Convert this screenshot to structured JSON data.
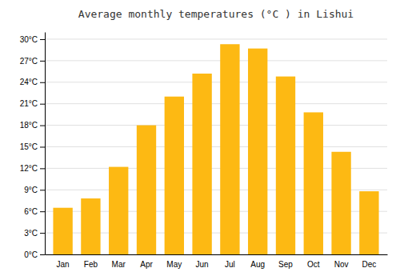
{
  "chart_data": {
    "type": "bar",
    "title": "Average monthly temperatures (°C ) in Lishui",
    "categories": [
      "Jan",
      "Feb",
      "Mar",
      "Apr",
      "May",
      "Jun",
      "Jul",
      "Aug",
      "Sep",
      "Oct",
      "Nov",
      "Dec"
    ],
    "values": [
      6.5,
      7.8,
      12.2,
      18.0,
      22.0,
      25.2,
      29.3,
      28.7,
      24.8,
      19.8,
      14.3,
      8.8
    ],
    "color": "#FDB913",
    "ylim": [
      0,
      31
    ],
    "yticks": [
      {
        "value": 0,
        "label": "0°C"
      },
      {
        "value": 3,
        "label": "3°C"
      },
      {
        "value": 6,
        "label": "6°C"
      },
      {
        "value": 9,
        "label": "9°C"
      },
      {
        "value": 12,
        "label": "12°C"
      },
      {
        "value": 15,
        "label": "15°C"
      },
      {
        "value": 18,
        "label": "18°C"
      },
      {
        "value": 21,
        "label": "21°C"
      },
      {
        "value": 24,
        "label": "24°C"
      },
      {
        "value": 27,
        "label": "27°C"
      },
      {
        "value": 30,
        "label": "30°C"
      }
    ],
    "grid": true
  }
}
